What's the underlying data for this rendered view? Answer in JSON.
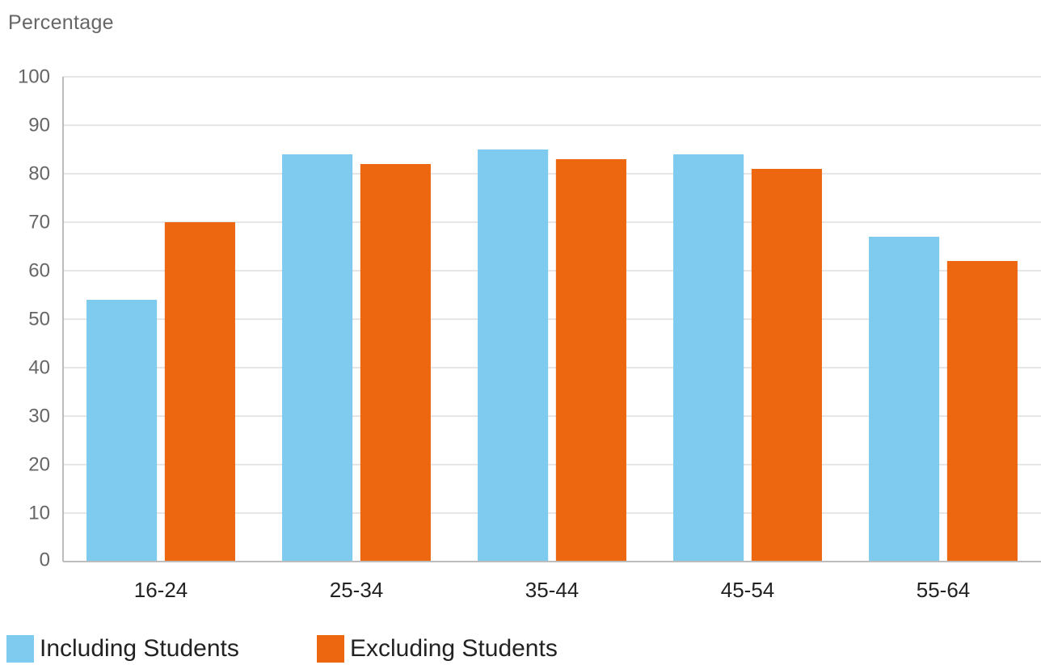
{
  "chart_data": {
    "type": "bar",
    "title": "",
    "xlabel": "",
    "ylabel": "Percentage",
    "ylim": [
      0,
      100
    ],
    "yticks": [
      0,
      10,
      20,
      30,
      40,
      50,
      60,
      70,
      80,
      90,
      100
    ],
    "grid": true,
    "legend_position": "bottom-left",
    "categories": [
      "16-24",
      "25-34",
      "35-44",
      "45-54",
      "55-64"
    ],
    "series": [
      {
        "name": "Including Students",
        "color": "#7ecbef",
        "values": [
          54,
          84,
          85,
          84,
          67
        ]
      },
      {
        "name": "Excluding Students",
        "color": "#ec6710",
        "values": [
          70,
          82,
          83,
          81,
          62
        ]
      }
    ]
  },
  "colors": {
    "grid": "#e6e6e6",
    "axis": "#bdbdbd"
  }
}
